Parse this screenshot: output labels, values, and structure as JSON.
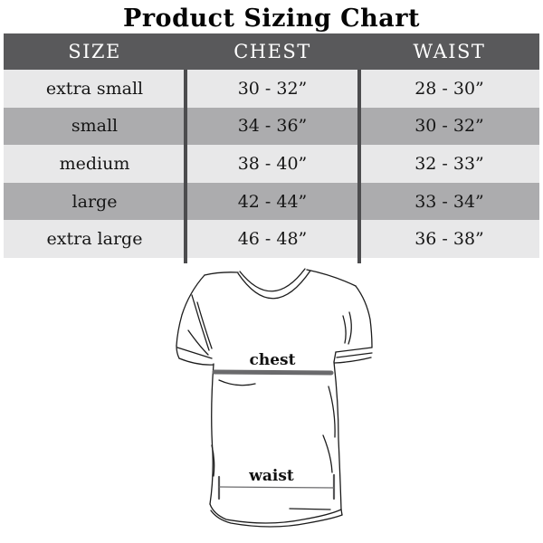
{
  "title": "Product Sizing Chart",
  "table": {
    "columns": [
      "SIZE",
      "CHEST",
      "WAIST"
    ],
    "rows": [
      [
        "extra small",
        "30 - 32”",
        "28 - 30”"
      ],
      [
        "small",
        "34 - 36”",
        "30 - 32”"
      ],
      [
        "medium",
        "38 - 40”",
        "32 - 33”"
      ],
      [
        "large",
        "42 - 44”",
        "33 - 34”"
      ],
      [
        "extra large",
        "46 - 48”",
        "36 - 38”"
      ]
    ]
  },
  "diagram": {
    "chest_label": "chest",
    "waist_label": "waist"
  },
  "colors": {
    "header_bg": "#59595b",
    "row_light": "#e8e8e9",
    "row_dark": "#acacae",
    "divider": "#4c4c4e",
    "measure_bar": "#6a6a6c"
  }
}
